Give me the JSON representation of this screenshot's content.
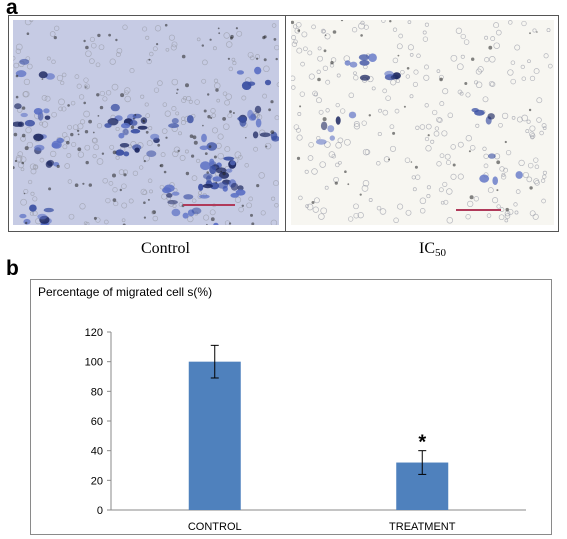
{
  "panel_a": {
    "letter": "a",
    "left_caption": "Control",
    "right_caption_main": "IC",
    "right_caption_sub": "50"
  },
  "panel_b": {
    "letter": "b"
  },
  "colors": {
    "bar": "#4f81bd",
    "cell_stain": "#3a4fa3",
    "scale_bar": "#b03a5a"
  },
  "chart_data": {
    "type": "bar",
    "title": "Percentage of migrated cell s(%)",
    "xlabel": "",
    "ylabel": "",
    "categories": [
      "CONTROL",
      "TREATMENT"
    ],
    "values": [
      100,
      32
    ],
    "errors": [
      11,
      8
    ],
    "annotations": [
      "",
      "*"
    ],
    "ylim": [
      0,
      120
    ],
    "yticks": [
      0,
      20,
      40,
      60,
      80,
      100,
      120
    ],
    "grid": false,
    "legend": "none"
  }
}
